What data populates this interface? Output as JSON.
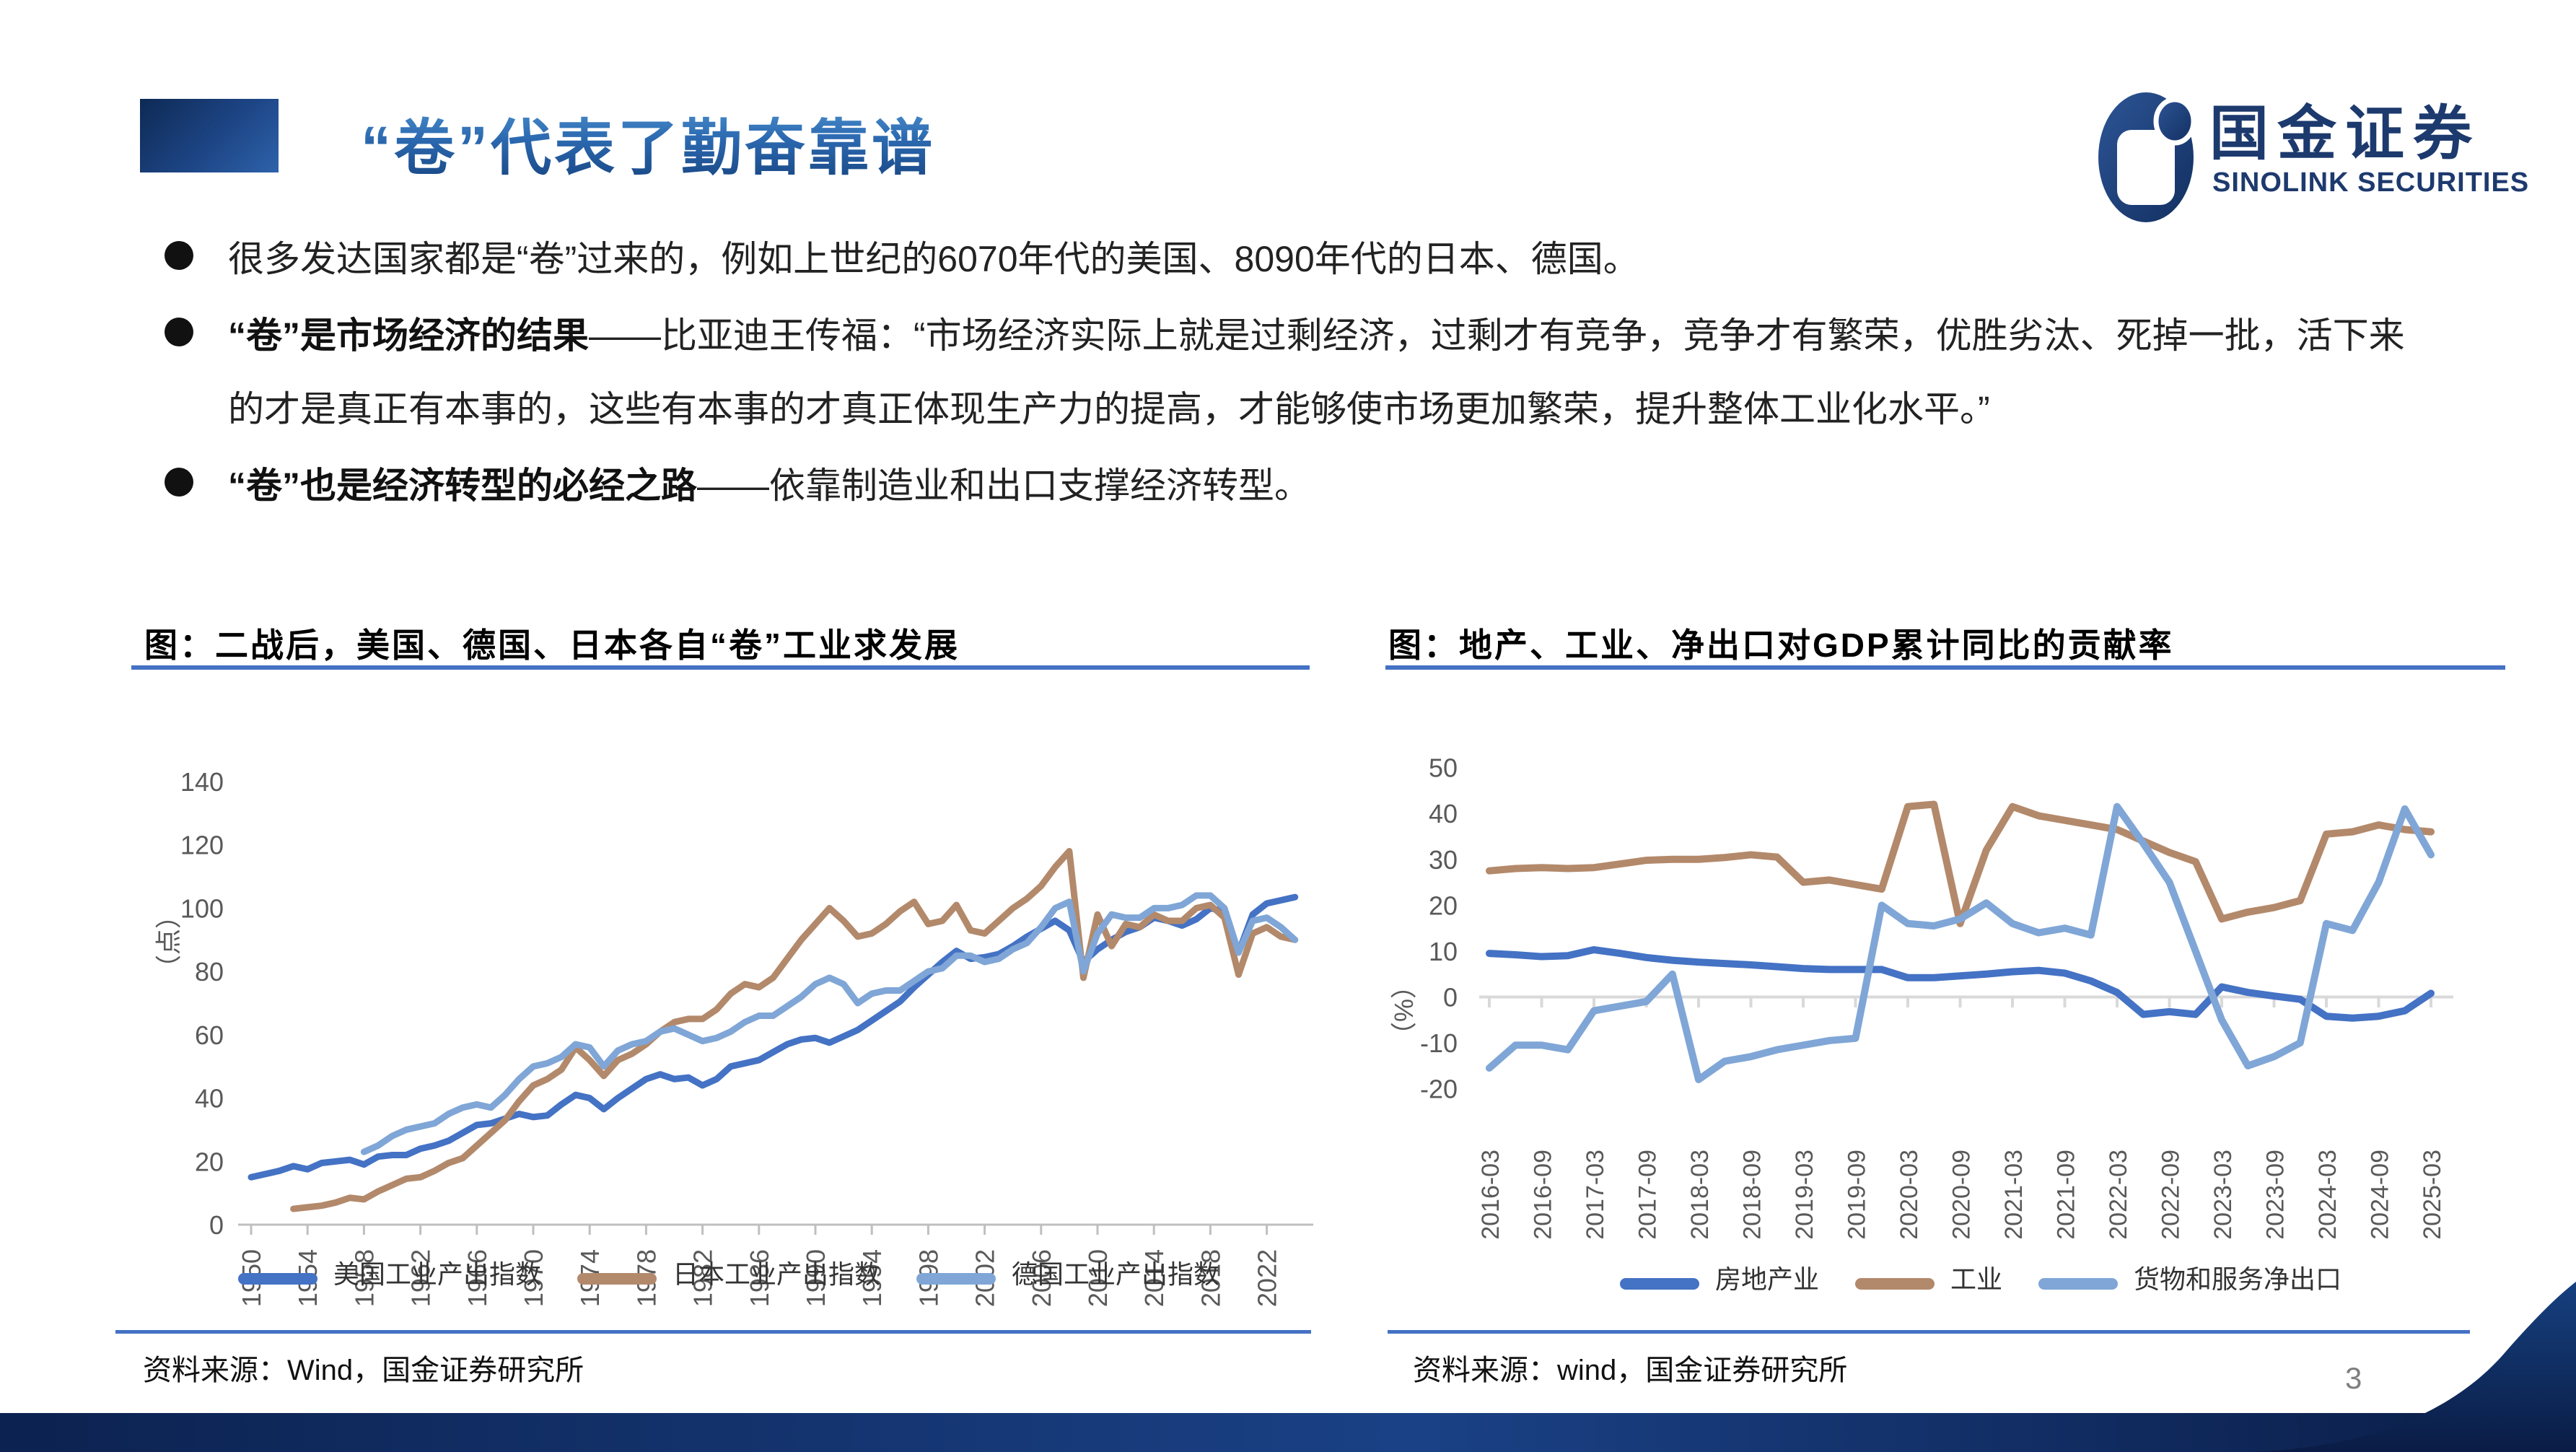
{
  "slide": {
    "title": "“卷”代表了勤奋靠谱",
    "page_number": "3",
    "logo": {
      "cn": "国金证券",
      "en": "SINOLINK SECURITIES"
    },
    "bullets": [
      {
        "bold": "",
        "text": "很多发达国家都是“卷”过来的，例如上世纪的6070年代的美国、8090年代的日本、德国。"
      },
      {
        "bold": "“卷”是市场经济的结果",
        "text": "——比亚迪王传福：“市场经济实际上就是过剩经济，过剩才有竞争，竞争才有繁荣，优胜劣汰、死掉一批，活下来的才是真正有本事的，这些有本事的才真正体现生产力的提高，才能够使市场更加繁荣，提升整体工业化水平。”"
      },
      {
        "bold": "“卷”也是经济转型的必经之路",
        "text": "——依靠制造业和出口支撑经济转型。"
      }
    ],
    "sources": {
      "left": "资料来源：Wind，国金证券研究所",
      "right": "资料来源：wind，国金证券研究所"
    }
  },
  "chart_data": [
    {
      "type": "line",
      "title": "图：二战后，美国、德国、日本各自“卷”工业求发展",
      "ylabel": "（点）",
      "ylim": [
        0,
        140
      ],
      "yticks": [
        0,
        20,
        40,
        60,
        80,
        100,
        120,
        140
      ],
      "xticks": [
        1950,
        1954,
        1958,
        1962,
        1966,
        1970,
        1974,
        1978,
        1982,
        1986,
        1990,
        1994,
        1998,
        2002,
        2006,
        2010,
        2014,
        2018,
        2022
      ],
      "grid": false,
      "legend_position": "bottom",
      "series": [
        {
          "name": "美国工业产出指数",
          "color": "#4472C4",
          "start_year": 1950,
          "values": [
            15,
            16,
            17,
            18.5,
            17.5,
            19.5,
            20,
            20.5,
            19,
            21.5,
            22,
            22,
            24,
            25,
            26.5,
            29,
            31.5,
            32,
            33.5,
            35,
            34,
            34.5,
            38,
            41,
            40,
            36.5,
            40,
            43,
            46,
            47.5,
            46,
            46.5,
            44,
            46,
            50,
            51,
            52,
            54.5,
            57,
            58.5,
            59,
            57.5,
            59.5,
            61.5,
            64.5,
            67.5,
            70.5,
            75,
            79,
            83,
            86.5,
            84,
            84.5,
            85.5,
            88,
            91,
            93.5,
            96,
            93,
            83,
            87,
            90,
            92.5,
            94,
            97,
            96,
            94.5,
            96.5,
            100,
            99,
            86,
            98,
            101.5,
            102.5,
            103.5
          ]
        },
        {
          "name": "日本工业产出指数",
          "color": "#B3896B",
          "start_year": 1953,
          "values": [
            5,
            5.5,
            6,
            7,
            8.5,
            8,
            10.5,
            12.5,
            14.5,
            15,
            17,
            19.5,
            21,
            25,
            29,
            33,
            39,
            44,
            46,
            49,
            56,
            52,
            47,
            52,
            54,
            57,
            61,
            64,
            65,
            65,
            68,
            73,
            76,
            75,
            78,
            84,
            90,
            95,
            100,
            96,
            91,
            92,
            95,
            99,
            102,
            95,
            96,
            101,
            93,
            92,
            96,
            100,
            103,
            107,
            113,
            118,
            78,
            98,
            88,
            95,
            94,
            98,
            96,
            96,
            100,
            101,
            97,
            79,
            92,
            94,
            91,
            90
          ]
        },
        {
          "name": "德国工业产出指数",
          "color": "#7FA6D6",
          "start_year": 1958,
          "values": [
            23,
            25,
            28,
            30,
            31,
            32,
            35,
            37,
            38,
            37,
            41,
            46,
            50,
            51,
            53,
            57,
            56,
            50,
            55,
            57,
            58,
            61,
            62,
            60,
            58,
            59,
            61,
            64,
            66,
            66,
            69,
            72,
            76,
            78,
            76,
            70,
            73,
            74,
            74,
            77,
            80,
            81,
            85,
            85,
            83,
            84,
            87,
            89,
            94,
            100,
            102,
            80,
            92,
            98,
            97,
            97,
            100,
            100,
            101,
            104,
            104,
            100,
            86,
            96,
            97,
            94,
            90
          ]
        }
      ]
    },
    {
      "type": "line",
      "title": "图：地产、工业、净出口对GDP累计同比的贡献率",
      "ylabel": "（%）",
      "ylim": [
        -20,
        50
      ],
      "yticks": [
        -20,
        -10,
        0,
        10,
        20,
        30,
        40,
        50
      ],
      "categories": [
        "2016-03",
        "2016-06",
        "2016-09",
        "2016-12",
        "2017-03",
        "2017-06",
        "2017-09",
        "2017-12",
        "2018-03",
        "2018-06",
        "2018-09",
        "2018-12",
        "2019-03",
        "2019-06",
        "2019-09",
        "2019-12",
        "2020-03",
        "2020-06",
        "2020-09",
        "2020-12",
        "2021-03",
        "2021-06",
        "2021-09",
        "2021-12",
        "2022-03",
        "2022-06",
        "2022-09",
        "2022-12",
        "2023-03",
        "2023-06",
        "2023-09",
        "2023-12",
        "2024-03",
        "2024-06",
        "2024-09",
        "2024-12",
        "2025-03"
      ],
      "xtick_every": 2,
      "grid": false,
      "legend_position": "bottom",
      "series": [
        {
          "name": "房地产业",
          "color": "#4472C4",
          "values": [
            9.5,
            9.2,
            8.8,
            9,
            10.3,
            9.5,
            8.6,
            8,
            7.6,
            7.3,
            7,
            6.6,
            6.2,
            6,
            6,
            6,
            4.2,
            4.2,
            4.6,
            5,
            5.5,
            5.8,
            5.2,
            3.5,
            1,
            -3.8,
            -3.2,
            -3.8,
            2.2,
            1,
            0.2,
            -0.5,
            -4.2,
            -4.6,
            -4.2,
            -3,
            0.8
          ]
        },
        {
          "name": "工业",
          "color": "#B3896B",
          "values": [
            27.5,
            28,
            28.2,
            28,
            28.2,
            29,
            29.8,
            30,
            30,
            30.4,
            31,
            30.5,
            25,
            25.5,
            24.5,
            23.5,
            41.5,
            42,
            16,
            32,
            41.5,
            39.5,
            38.5,
            37.5,
            36.5,
            34,
            31.5,
            29.5,
            17,
            18.5,
            19.5,
            21,
            35.5,
            36,
            37.5,
            36.5,
            36
          ]
        },
        {
          "name": "货物和服务净出口",
          "color": "#7FA6D6",
          "values": [
            -15.5,
            -10.5,
            -10.5,
            -11.5,
            -3,
            -2,
            -1,
            5,
            -18,
            -14,
            -13,
            -11.5,
            -10.5,
            -9.5,
            -9,
            20,
            16,
            15.5,
            17,
            20.5,
            16,
            14,
            15,
            13.5,
            41.5,
            33.5,
            25,
            10,
            -5,
            -15,
            -13,
            -10,
            16,
            14.5,
            25,
            41,
            31
          ]
        }
      ]
    }
  ]
}
